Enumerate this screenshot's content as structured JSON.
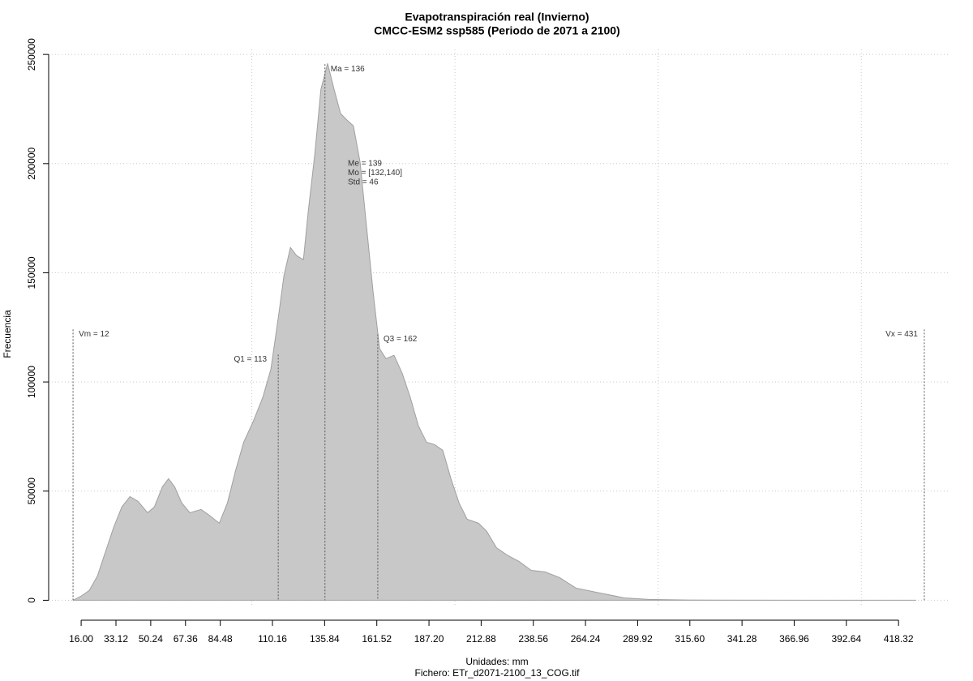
{
  "chart_data": {
    "type": "area",
    "title": "Evapotranspiración real (Invierno)",
    "subtitle": "CMCC-ESM2 ssp585 (Periodo de 2071 a 2100)",
    "xlabel": "Unidades: mm",
    "caption": "Fichero: ETr_d2071-2100_13_COG.tif",
    "ylabel": "Frecuencia",
    "color": "#c8c8c8",
    "line_color": "#a0a0a0",
    "x": [
      12,
      16,
      20,
      24,
      28,
      32,
      36,
      40,
      44,
      48.7,
      52,
      56,
      59,
      62,
      65.5,
      69.5,
      75,
      79,
      84,
      88,
      92,
      96,
      100.6,
      105.4,
      109.4,
      113.4,
      115.8,
      119,
      122,
      125.4,
      127.8,
      131,
      134,
      137.3,
      140.5,
      143.7,
      146.9,
      150,
      153.3,
      156.5,
      159.7,
      162.9,
      166,
      170,
      174,
      178,
      182,
      186,
      190,
      194,
      198,
      202,
      206,
      211.6,
      215.6,
      220.4,
      225.5,
      231.5,
      237.5,
      244.3,
      251.5,
      259.5,
      271.4,
      283.4,
      295.4,
      315,
      375,
      427
    ],
    "values": [
      0,
      1900,
      4500,
      11100,
      22300,
      33400,
      42700,
      47500,
      45300,
      40100,
      42700,
      52000,
      55700,
      52000,
      44600,
      40100,
      41600,
      39000,
      35300,
      44600,
      59400,
      72400,
      81700,
      92900,
      105900,
      131900,
      148600,
      161600,
      157900,
      156000,
      178300,
      204300,
      234000,
      245900,
      234000,
      222900,
      219900,
      217300,
      200600,
      170900,
      141200,
      115200,
      110700,
      112200,
      104000,
      92900,
      79900,
      72400,
      71300,
      68700,
      55700,
      44600,
      37100,
      35300,
      31600,
      24100,
      20800,
      17800,
      13700,
      13000,
      10400,
      5600,
      3300,
      1100,
      400,
      100,
      0,
      0
    ],
    "xlim": [
      0,
      443
    ],
    "ylim": [
      -9500,
      256000
    ],
    "xticks": [
      {
        "value": 16,
        "label": "16.00"
      },
      33.12,
      50.24,
      67.36,
      84.48,
      110.16,
      135.84,
      161.52,
      {
        "value": 187.2,
        "label": "187.20"
      },
      212.88,
      238.56,
      264.24,
      289.92,
      {
        "value": 315.6,
        "label": "315.60"
      },
      341.28,
      366.96,
      392.64,
      418.32
    ],
    "xgrid": [
      100,
      200,
      300,
      400
    ],
    "yticks": [
      0,
      50000,
      100000,
      150000,
      200000,
      250000
    ],
    "grid": true,
    "markers": [
      {
        "label": "Vm = 12",
        "x": 12,
        "y": 121800
      },
      {
        "label": "Q1 = 113",
        "x": 113,
        "y": 110300
      },
      {
        "label": "Ma = 136",
        "x": 136,
        "y": 243300
      },
      {
        "label": "Q3 = 162",
        "x": 162,
        "y": 119600
      },
      {
        "label": "Vx = 431",
        "x": 431,
        "y": 121800
      }
    ],
    "notes": [
      "Me = 139",
      "Mo = [132,140]",
      "Std = 46"
    ]
  }
}
